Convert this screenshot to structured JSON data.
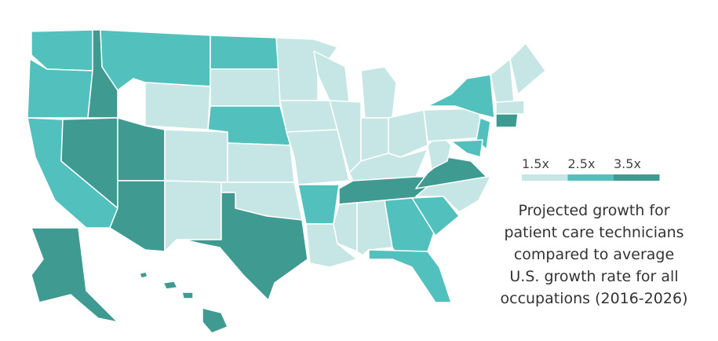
{
  "legend": [
    {
      "label": "1.5x",
      "color": "#c5e6e4"
    },
    {
      "label": "2.5x",
      "color": "#52c0bc"
    },
    {
      "label": "3.5x",
      "color": "#3f9a91"
    }
  ],
  "caption": [
    "Projected growth for",
    "patient care technicians",
    "compared to average",
    "U.S. growth rate for all",
    "occupations (2016-2026)"
  ]
}
